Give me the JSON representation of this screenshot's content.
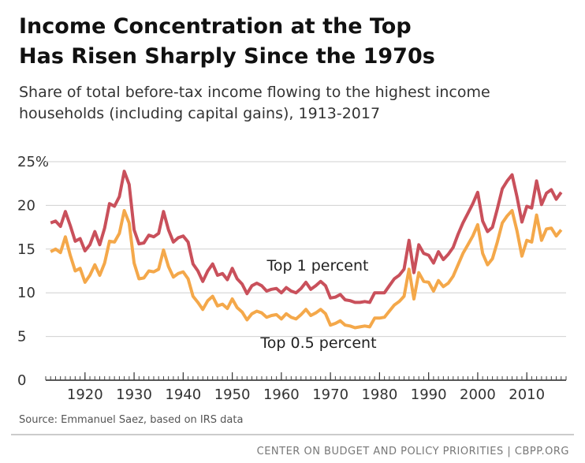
{
  "chart_data": {
    "type": "line",
    "title": [
      "Income Concentration at the Top",
      "Has Risen Sharply Since the 1970s"
    ],
    "subtitle": [
      "Share of total before-tax income flowing to the highest income",
      "households (including capital gains), 1913-2017"
    ],
    "source": "Source: Emmanuel Saez, based on IRS data",
    "footer": "CENTER ON BUDGET AND POLICY PRIORITIES | CBPP.ORG",
    "x": [
      1913,
      1914,
      1915,
      1916,
      1917,
      1918,
      1919,
      1920,
      1921,
      1922,
      1923,
      1924,
      1925,
      1926,
      1927,
      1928,
      1929,
      1930,
      1931,
      1932,
      1933,
      1934,
      1935,
      1936,
      1937,
      1938,
      1939,
      1940,
      1941,
      1942,
      1943,
      1944,
      1945,
      1946,
      1947,
      1948,
      1949,
      1950,
      1951,
      1952,
      1953,
      1954,
      1955,
      1956,
      1957,
      1958,
      1959,
      1960,
      1961,
      1962,
      1963,
      1964,
      1965,
      1966,
      1967,
      1968,
      1969,
      1970,
      1971,
      1972,
      1973,
      1974,
      1975,
      1976,
      1977,
      1978,
      1979,
      1980,
      1981,
      1982,
      1983,
      1984,
      1985,
      1986,
      1987,
      1988,
      1989,
      1990,
      1991,
      1992,
      1993,
      1994,
      1995,
      1996,
      1997,
      1998,
      1999,
      2000,
      2001,
      2002,
      2003,
      2004,
      2005,
      2006,
      2007,
      2008,
      2009,
      2010,
      2011,
      2012,
      2013,
      2014,
      2015,
      2016,
      2017
    ],
    "series": [
      {
        "name": "Top 1 percent",
        "color": "#c9505b",
        "values": [
          18.0,
          18.2,
          17.6,
          19.3,
          17.7,
          15.9,
          16.2,
          14.8,
          15.5,
          17.0,
          15.5,
          17.4,
          20.2,
          19.9,
          21.0,
          23.9,
          22.4,
          17.2,
          15.6,
          15.7,
          16.6,
          16.4,
          16.8,
          19.3,
          17.2,
          15.8,
          16.3,
          16.5,
          15.8,
          13.3,
          12.5,
          11.3,
          12.5,
          13.3,
          12.0,
          12.2,
          11.5,
          12.8,
          11.6,
          11.0,
          9.9,
          10.8,
          11.1,
          10.8,
          10.2,
          10.4,
          10.5,
          10.0,
          10.6,
          10.2,
          10.0,
          10.5,
          11.2,
          10.4,
          10.8,
          11.3,
          10.8,
          9.4,
          9.5,
          9.8,
          9.2,
          9.1,
          8.9,
          8.9,
          9.0,
          8.9,
          10.0,
          10.0,
          10.0,
          10.8,
          11.6,
          12.0,
          12.7,
          16.0,
          12.3,
          15.5,
          14.5,
          14.3,
          13.4,
          14.7,
          13.8,
          14.4,
          15.2,
          16.7,
          18.0,
          19.1,
          20.2,
          21.5,
          18.2,
          17.0,
          17.5,
          19.6,
          21.9,
          22.8,
          23.5,
          21.0,
          18.1,
          19.9,
          19.7,
          22.8,
          20.1,
          21.4,
          21.8,
          20.7,
          21.5
        ]
      },
      {
        "name": "Top 0.5 percent",
        "color": "#f4a84a",
        "values": [
          14.7,
          15.0,
          14.6,
          16.4,
          14.3,
          12.5,
          12.8,
          11.2,
          12.0,
          13.2,
          12.0,
          13.4,
          15.9,
          15.8,
          16.8,
          19.4,
          18.0,
          13.4,
          11.6,
          11.7,
          12.5,
          12.4,
          12.7,
          14.9,
          13.0,
          11.8,
          12.2,
          12.4,
          11.6,
          9.6,
          8.9,
          8.1,
          9.1,
          9.6,
          8.5,
          8.7,
          8.2,
          9.3,
          8.3,
          7.8,
          6.9,
          7.6,
          7.9,
          7.7,
          7.2,
          7.4,
          7.5,
          7.0,
          7.6,
          7.2,
          7.0,
          7.5,
          8.1,
          7.4,
          7.7,
          8.1,
          7.6,
          6.3,
          6.5,
          6.8,
          6.3,
          6.2,
          6.0,
          6.1,
          6.2,
          6.1,
          7.1,
          7.1,
          7.2,
          7.9,
          8.6,
          9.0,
          9.6,
          12.7,
          9.3,
          12.3,
          11.3,
          11.2,
          10.2,
          11.4,
          10.7,
          11.1,
          11.9,
          13.2,
          14.5,
          15.5,
          16.5,
          17.8,
          14.5,
          13.2,
          13.9,
          15.8,
          18.0,
          18.8,
          19.4,
          17.1,
          14.2,
          16.0,
          15.8,
          18.9,
          16.0,
          17.3,
          17.4,
          16.5,
          17.2
        ]
      }
    ],
    "xlim": [
      1912,
      2018
    ],
    "xticks": [
      1920,
      1930,
      1940,
      1950,
      1960,
      1970,
      1980,
      1990,
      2000,
      2010
    ],
    "ylim": [
      0,
      25
    ],
    "yticks": [
      0,
      5,
      10,
      15,
      20,
      {
        "value": 25,
        "label": "25%"
      }
    ],
    "grid": true
  }
}
